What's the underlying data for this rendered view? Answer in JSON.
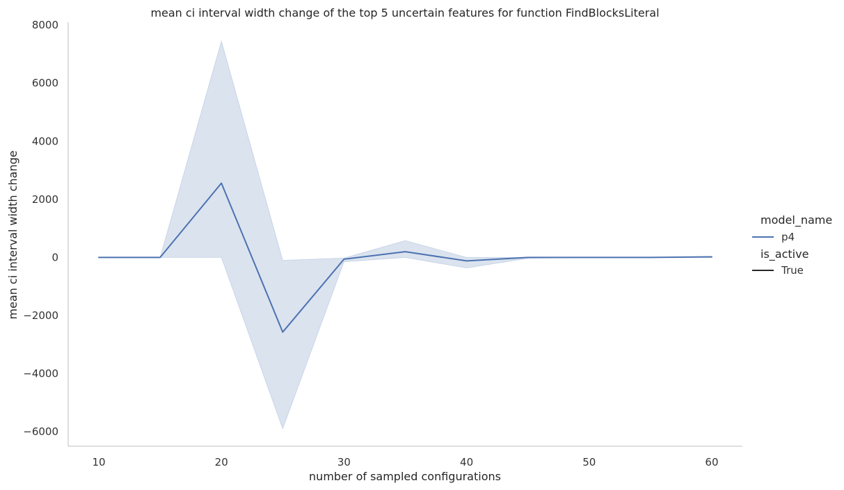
{
  "chart_data": {
    "type": "line",
    "title": "mean ci interval width change of the top 5 uncertain features for function FindBlocksLiteral",
    "xlabel": "number of sampled configurations",
    "ylabel": "mean ci interval width change",
    "xlim": [
      7.5,
      62.5
    ],
    "ylim": [
      -6500,
      8100
    ],
    "x_ticks": [
      10,
      20,
      30,
      40,
      50,
      60
    ],
    "y_ticks": [
      -6000,
      -4000,
      -2000,
      0,
      2000,
      4000,
      6000,
      8000
    ],
    "x_tick_labels": [
      "10",
      "20",
      "30",
      "40",
      "50",
      "60"
    ],
    "y_tick_labels": [
      "−6000",
      "−4000",
      "−2000",
      "0",
      "2000",
      "4000",
      "6000",
      "8000"
    ],
    "grid": false,
    "legend_placement": "right",
    "series": [
      {
        "name": "p4",
        "color": "#4c72b0",
        "x": [
          10,
          15,
          20,
          25,
          30,
          35,
          40,
          45,
          50,
          55,
          60
        ],
        "y": [
          0,
          0,
          2560,
          -2570,
          -60,
          200,
          -120,
          0,
          0,
          0,
          20
        ],
        "ci_lower": [
          0,
          0,
          0,
          -5900,
          -150,
          0,
          -360,
          -30,
          0,
          0,
          0
        ],
        "ci_upper": [
          0,
          0,
          7450,
          -100,
          -20,
          580,
          0,
          0,
          0,
          0,
          40
        ]
      }
    ],
    "legend": {
      "hue_title": "model_name",
      "hue_items": [
        {
          "label": "p4",
          "color": "#4c72b0"
        }
      ],
      "style_title": "is_active",
      "style_items": [
        {
          "label": "True",
          "color": "#262626"
        }
      ]
    }
  }
}
